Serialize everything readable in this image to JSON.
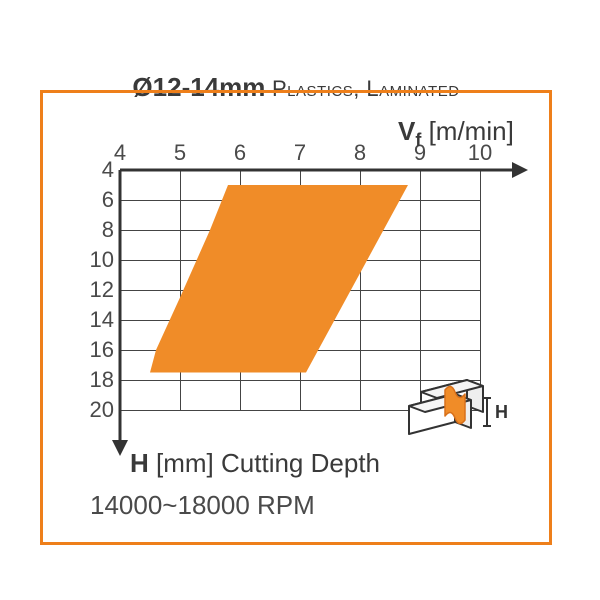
{
  "title_main": "Ø12-14mm",
  "title_sub": " Plastics, Laminated",
  "frame_border_color": "#ee7f1a",
  "text_color": "#3a3a3a",
  "grid_color": "#444444",
  "background_color": "#ffffff",
  "axis_x": {
    "symbol": "V",
    "subscript": "f",
    "unit": "[m/min]",
    "ticks": [
      4,
      5,
      6,
      7,
      8,
      9,
      10
    ],
    "min": 4,
    "max": 10
  },
  "axis_y": {
    "symbol": "H",
    "unit": "[mm]",
    "label": "Cutting Depth",
    "ticks": [
      4,
      6,
      8,
      10,
      12,
      14,
      16,
      18,
      20
    ],
    "min": 4,
    "max": 20
  },
  "rpm_text": "14000~18000 RPM",
  "region": {
    "fill_color": "#f08c28",
    "points_data_coords": [
      [
        4.5,
        17.5
      ],
      [
        7.1,
        17.5
      ],
      [
        8.8,
        5.0
      ],
      [
        5.8,
        5.0
      ],
      [
        5.5,
        8.0
      ],
      [
        5.0,
        12.5
      ],
      [
        4.6,
        16.0
      ]
    ]
  },
  "icon": {
    "label": "H",
    "stroke": "#333333",
    "fill": "#ffffff",
    "accent": "#f08c28"
  }
}
